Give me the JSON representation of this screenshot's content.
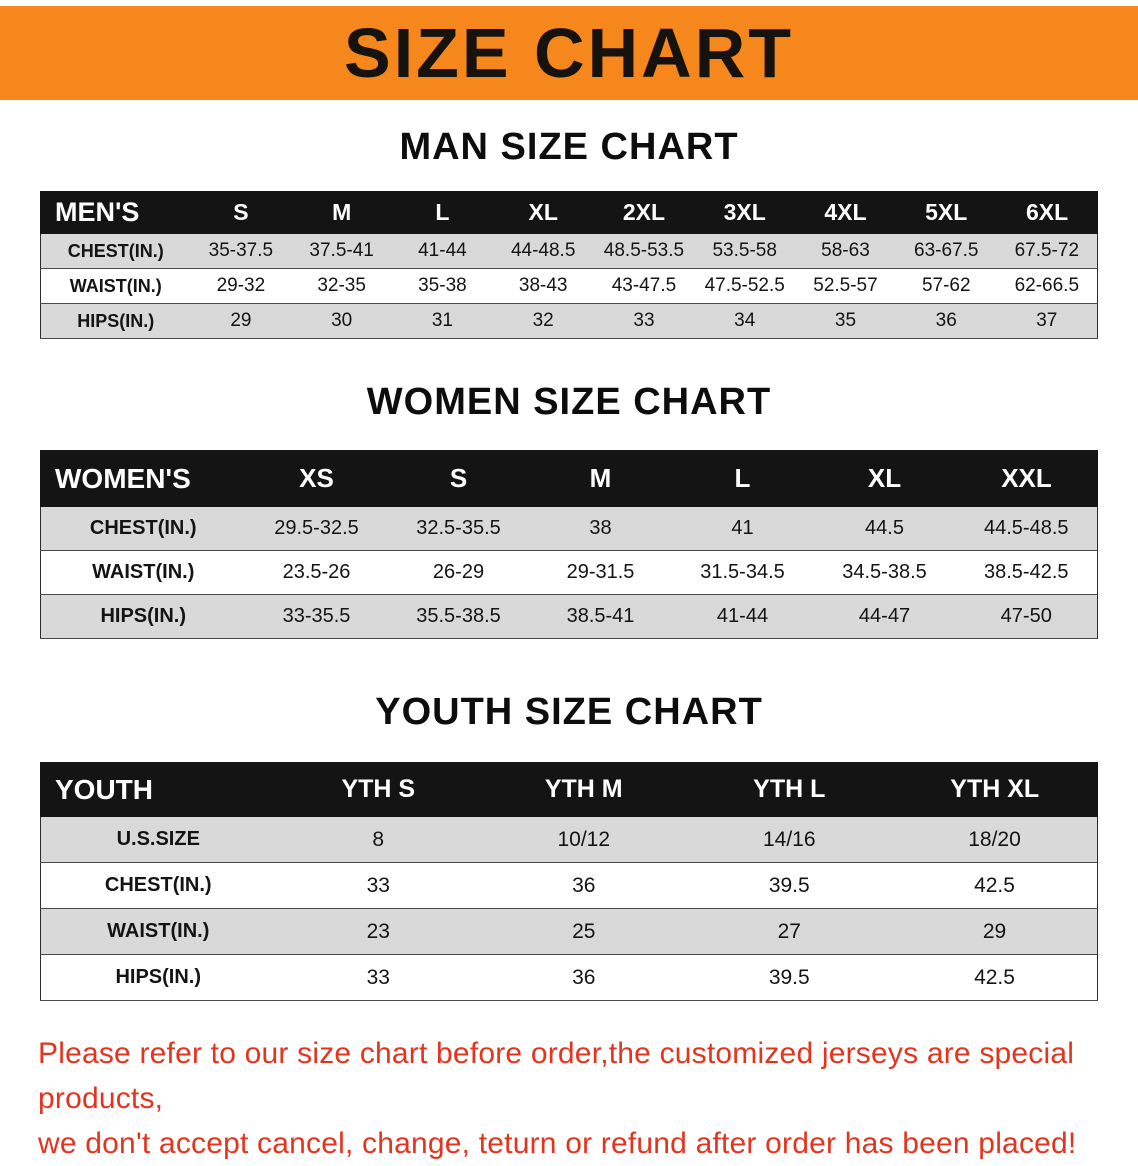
{
  "banner": {
    "title": "SIZE CHART"
  },
  "colors": {
    "banner_bg": "#f6871d",
    "table_header_bg": "#141414",
    "row_stripe_bg": "#d9d9d9",
    "disclaimer_text": "#e5341e"
  },
  "chart_data": [
    {
      "type": "table",
      "title": "MAN SIZE CHART",
      "label": "MEN'S",
      "columns": [
        "S",
        "M",
        "L",
        "XL",
        "2XL",
        "3XL",
        "4XL",
        "5XL",
        "6XL"
      ],
      "rows": [
        {
          "label": "CHEST(IN.)",
          "values": [
            "35-37.5",
            "37.5-41",
            "41-44",
            "44-48.5",
            "48.5-53.5",
            "53.5-58",
            "58-63",
            "63-67.5",
            "67.5-72"
          ]
        },
        {
          "label": "WAIST(IN.)",
          "values": [
            "29-32",
            "32-35",
            "35-38",
            "38-43",
            "43-47.5",
            "47.5-52.5",
            "52.5-57",
            "57-62",
            "62-66.5"
          ]
        },
        {
          "label": "HIPS(IN.)",
          "values": [
            "29",
            "30",
            "31",
            "32",
            "33",
            "34",
            "35",
            "36",
            "37"
          ]
        }
      ]
    },
    {
      "type": "table",
      "title": "WOMEN SIZE CHART",
      "label": "WOMEN'S",
      "columns": [
        "XS",
        "S",
        "M",
        "L",
        "XL",
        "XXL"
      ],
      "rows": [
        {
          "label": "CHEST(IN.)",
          "values": [
            "29.5-32.5",
            "32.5-35.5",
            "38",
            "41",
            "44.5",
            "44.5-48.5"
          ]
        },
        {
          "label": "WAIST(IN.)",
          "values": [
            "23.5-26",
            "26-29",
            "29-31.5",
            "31.5-34.5",
            "34.5-38.5",
            "38.5-42.5"
          ]
        },
        {
          "label": "HIPS(IN.)",
          "values": [
            "33-35.5",
            "35.5-38.5",
            "38.5-41",
            "41-44",
            "44-47",
            "47-50"
          ]
        }
      ]
    },
    {
      "type": "table",
      "title": "YOUTH SIZE CHART",
      "label": "YOUTH",
      "columns": [
        "YTH S",
        "YTH M",
        "YTH L",
        "YTH XL"
      ],
      "rows": [
        {
          "label": "U.S.SIZE",
          "values": [
            "8",
            "10/12",
            "14/16",
            "18/20"
          ]
        },
        {
          "label": "CHEST(IN.)",
          "values": [
            "33",
            "36",
            "39.5",
            "42.5"
          ]
        },
        {
          "label": "WAIST(IN.)",
          "values": [
            "23",
            "25",
            "27",
            "29"
          ]
        },
        {
          "label": "HIPS(IN.)",
          "values": [
            "33",
            "36",
            "39.5",
            "42.5"
          ]
        }
      ]
    }
  ],
  "disclaimer": {
    "line1": "Please refer to our size chart before order,the customized jerseys are special products,",
    "line2": "we don't accept cancel, change, teturn or refund after order has been placed!"
  }
}
